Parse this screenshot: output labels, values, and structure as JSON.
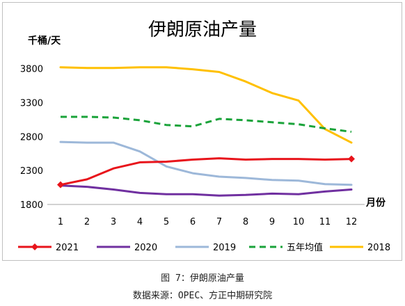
{
  "chart_data": {
    "type": "line",
    "title": "伊朗原油产量",
    "ylabel": "千桶/天",
    "xlabel": "月份",
    "x": [
      "1",
      "2",
      "3",
      "4",
      "5",
      "6",
      "7",
      "8",
      "9",
      "10",
      "11",
      "12"
    ],
    "yticks": [
      1800,
      2300,
      2800,
      3300,
      3800
    ],
    "ylim": [
      1800,
      3950
    ],
    "grid": false,
    "legend_position": "bottom",
    "series": [
      {
        "name": "2021",
        "color": "#e8141b",
        "dash": "solid",
        "marker": "diamond",
        "values": [
          2090,
          2170,
          2330,
          2420,
          2430,
          2460,
          2480,
          2460,
          2470,
          2470,
          2460,
          2470
        ]
      },
      {
        "name": "2020",
        "color": "#7030a0",
        "dash": "solid",
        "marker": "none",
        "values": [
          2080,
          2060,
          2020,
          1970,
          1950,
          1950,
          1930,
          1940,
          1960,
          1950,
          1990,
          2020
        ]
      },
      {
        "name": "2019",
        "color": "#9db8d9",
        "dash": "solid",
        "marker": "none",
        "values": [
          2720,
          2710,
          2710,
          2580,
          2360,
          2260,
          2210,
          2190,
          2160,
          2150,
          2100,
          2090
        ]
      },
      {
        "name": "五年均值",
        "color": "#1aa33a",
        "dash": "dashed",
        "marker": "none",
        "values": [
          3090,
          3090,
          3080,
          3040,
          2970,
          2950,
          3060,
          3040,
          3010,
          2980,
          2920,
          2870
        ]
      },
      {
        "name": "2018",
        "color": "#ffc000",
        "dash": "solid",
        "marker": "none",
        "values": [
          3820,
          3810,
          3810,
          3820,
          3820,
          3790,
          3750,
          3610,
          3440,
          3330,
          2910,
          2710
        ]
      }
    ]
  },
  "captions": {
    "figure": "图 7：伊朗原油产量",
    "source": "数据来源：OPEC、方正中期研究院"
  }
}
